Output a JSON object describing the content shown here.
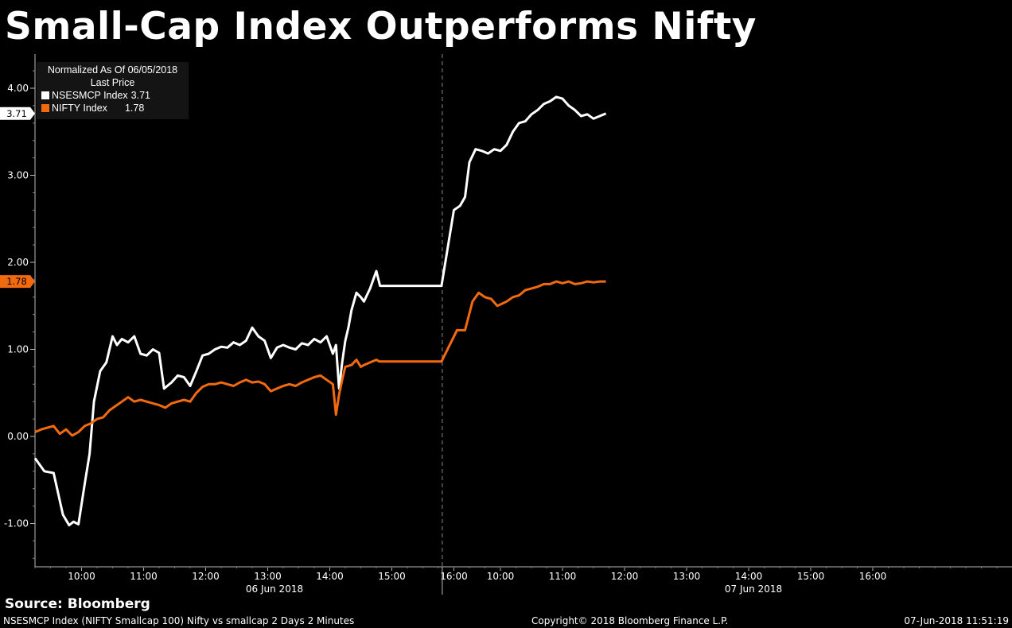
{
  "title": "Small-Cap Index Outperforms Nifty",
  "legend": {
    "header1": "Normalized As Of 06/05/2018",
    "header2": "Last Price",
    "items": [
      {
        "name": "NSESMCP Index",
        "value": "3.71",
        "color": "#ffffff"
      },
      {
        "name": "NIFTY Index",
        "value": "1.78",
        "color": "#f26a10"
      }
    ]
  },
  "footer": {
    "source": "Source: Bloomberg",
    "description": "NSESMCP Index (NIFTY Smallcap 100) Nifty vs smallcap 2 Days 2 Minutes",
    "copyright": "Copyright© 2018 Bloomberg Finance L.P.",
    "timestamp": "07-Jun-2018 11:51:19"
  },
  "chart_data": {
    "type": "line",
    "ylim": [
      -1.5,
      4.4
    ],
    "y_ticks": [
      -1,
      0,
      1,
      2,
      3,
      4
    ],
    "y_tick_labels": [
      "-1.00",
      "0.00",
      "1.00",
      "2.00",
      "3.00",
      "4.00"
    ],
    "x_tick_labels": [
      "10:00",
      "11:00",
      "12:00",
      "13:00",
      "14:00",
      "15:00",
      "16:00",
      "10:00",
      "11:00",
      "12:00",
      "13:00",
      "14:00",
      "15:00",
      "16:00"
    ],
    "days": [
      "06 Jun 2018",
      "07 Jun 2018"
    ],
    "series": [
      {
        "name": "NSESMCP Index",
        "last_label": "3.71",
        "color": "#ffffff",
        "points": [
          [
            0.0,
            -0.25
          ],
          [
            0.15,
            -0.4
          ],
          [
            0.3,
            -0.42
          ],
          [
            0.45,
            -0.9
          ],
          [
            0.55,
            -1.02
          ],
          [
            0.62,
            -0.98
          ],
          [
            0.7,
            -1.01
          ],
          [
            0.8,
            -0.55
          ],
          [
            0.88,
            -0.2
          ],
          [
            0.95,
            0.4
          ],
          [
            1.05,
            0.75
          ],
          [
            1.15,
            0.85
          ],
          [
            1.25,
            1.15
          ],
          [
            1.32,
            1.05
          ],
          [
            1.4,
            1.12
          ],
          [
            1.5,
            1.08
          ],
          [
            1.6,
            1.15
          ],
          [
            1.7,
            0.95
          ],
          [
            1.8,
            0.93
          ],
          [
            1.9,
            1.0
          ],
          [
            2.0,
            0.96
          ],
          [
            2.08,
            0.55
          ],
          [
            2.2,
            0.62
          ],
          [
            2.3,
            0.7
          ],
          [
            2.4,
            0.68
          ],
          [
            2.5,
            0.58
          ],
          [
            2.6,
            0.75
          ],
          [
            2.7,
            0.93
          ],
          [
            2.8,
            0.95
          ],
          [
            2.9,
            1.0
          ],
          [
            3.0,
            1.03
          ],
          [
            3.1,
            1.02
          ],
          [
            3.2,
            1.08
          ],
          [
            3.3,
            1.05
          ],
          [
            3.4,
            1.1
          ],
          [
            3.5,
            1.25
          ],
          [
            3.6,
            1.15
          ],
          [
            3.7,
            1.1
          ],
          [
            3.8,
            0.9
          ],
          [
            3.9,
            1.02
          ],
          [
            4.0,
            1.05
          ],
          [
            4.1,
            1.02
          ],
          [
            4.2,
            1.0
          ],
          [
            4.3,
            1.07
          ],
          [
            4.4,
            1.05
          ],
          [
            4.5,
            1.12
          ],
          [
            4.6,
            1.08
          ],
          [
            4.7,
            1.15
          ],
          [
            4.8,
            0.95
          ],
          [
            4.85,
            1.05
          ],
          [
            4.9,
            0.55
          ],
          [
            4.95,
            0.85
          ],
          [
            5.0,
            1.1
          ],
          [
            5.05,
            1.25
          ],
          [
            5.1,
            1.45
          ],
          [
            5.18,
            1.65
          ],
          [
            5.25,
            1.6
          ],
          [
            5.3,
            1.55
          ],
          [
            5.4,
            1.7
          ],
          [
            5.5,
            1.9
          ],
          [
            5.56,
            1.73
          ],
          [
            5.6,
            1.73
          ],
          [
            5.7,
            1.73
          ],
          [
            5.85,
            1.73
          ],
          [
            6.0,
            1.73
          ],
          [
            6.1,
            1.73
          ],
          [
            6.2,
            1.73
          ],
          [
            6.3,
            1.73
          ],
          [
            6.5,
            1.73
          ],
          [
            6.55,
            1.73
          ],
          [
            6.75,
            2.6
          ],
          [
            6.85,
            2.65
          ],
          [
            6.93,
            2.75
          ],
          [
            7.0,
            3.15
          ],
          [
            7.1,
            3.3
          ],
          [
            7.2,
            3.28
          ],
          [
            7.3,
            3.25
          ],
          [
            7.4,
            3.3
          ],
          [
            7.5,
            3.28
          ],
          [
            7.6,
            3.35
          ],
          [
            7.7,
            3.5
          ],
          [
            7.8,
            3.6
          ],
          [
            7.9,
            3.62
          ],
          [
            8.0,
            3.7
          ],
          [
            8.1,
            3.75
          ],
          [
            8.2,
            3.82
          ],
          [
            8.3,
            3.85
          ],
          [
            8.4,
            3.9
          ],
          [
            8.5,
            3.88
          ],
          [
            8.6,
            3.8
          ],
          [
            8.7,
            3.75
          ],
          [
            8.8,
            3.68
          ],
          [
            8.9,
            3.7
          ],
          [
            9.0,
            3.65
          ],
          [
            9.1,
            3.68
          ],
          [
            9.2,
            3.71
          ]
        ]
      },
      {
        "name": "NIFTY Index",
        "last_label": "1.78",
        "color": "#f26a10",
        "points": [
          [
            0.0,
            0.05
          ],
          [
            0.1,
            0.08
          ],
          [
            0.2,
            0.1
          ],
          [
            0.3,
            0.12
          ],
          [
            0.4,
            0.03
          ],
          [
            0.5,
            0.08
          ],
          [
            0.6,
            0.01
          ],
          [
            0.7,
            0.05
          ],
          [
            0.8,
            0.12
          ],
          [
            0.9,
            0.15
          ],
          [
            1.0,
            0.2
          ],
          [
            1.1,
            0.22
          ],
          [
            1.2,
            0.3
          ],
          [
            1.3,
            0.35
          ],
          [
            1.4,
            0.4
          ],
          [
            1.5,
            0.45
          ],
          [
            1.6,
            0.4
          ],
          [
            1.7,
            0.42
          ],
          [
            1.8,
            0.4
          ],
          [
            1.9,
            0.38
          ],
          [
            2.0,
            0.36
          ],
          [
            2.1,
            0.33
          ],
          [
            2.2,
            0.38
          ],
          [
            2.3,
            0.4
          ],
          [
            2.4,
            0.42
          ],
          [
            2.5,
            0.4
          ],
          [
            2.6,
            0.5
          ],
          [
            2.7,
            0.57
          ],
          [
            2.8,
            0.6
          ],
          [
            2.9,
            0.6
          ],
          [
            3.0,
            0.62
          ],
          [
            3.1,
            0.6
          ],
          [
            3.2,
            0.58
          ],
          [
            3.3,
            0.62
          ],
          [
            3.4,
            0.65
          ],
          [
            3.5,
            0.62
          ],
          [
            3.6,
            0.63
          ],
          [
            3.7,
            0.6
          ],
          [
            3.8,
            0.52
          ],
          [
            3.9,
            0.55
          ],
          [
            4.0,
            0.58
          ],
          [
            4.1,
            0.6
          ],
          [
            4.2,
            0.58
          ],
          [
            4.3,
            0.62
          ],
          [
            4.4,
            0.65
          ],
          [
            4.5,
            0.68
          ],
          [
            4.6,
            0.7
          ],
          [
            4.7,
            0.65
          ],
          [
            4.8,
            0.6
          ],
          [
            4.85,
            0.25
          ],
          [
            4.9,
            0.48
          ],
          [
            4.95,
            0.65
          ],
          [
            5.0,
            0.8
          ],
          [
            5.1,
            0.82
          ],
          [
            5.18,
            0.88
          ],
          [
            5.25,
            0.8
          ],
          [
            5.3,
            0.82
          ],
          [
            5.4,
            0.85
          ],
          [
            5.5,
            0.88
          ],
          [
            5.55,
            0.86
          ],
          [
            5.6,
            0.86
          ],
          [
            5.8,
            0.86
          ],
          [
            6.0,
            0.86
          ],
          [
            6.2,
            0.86
          ],
          [
            6.4,
            0.86
          ],
          [
            6.55,
            0.86
          ],
          [
            6.8,
            1.22
          ],
          [
            6.93,
            1.22
          ],
          [
            7.05,
            1.55
          ],
          [
            7.15,
            1.65
          ],
          [
            7.25,
            1.6
          ],
          [
            7.35,
            1.58
          ],
          [
            7.45,
            1.5
          ],
          [
            7.6,
            1.55
          ],
          [
            7.7,
            1.6
          ],
          [
            7.8,
            1.62
          ],
          [
            7.9,
            1.68
          ],
          [
            8.0,
            1.7
          ],
          [
            8.1,
            1.72
          ],
          [
            8.2,
            1.75
          ],
          [
            8.3,
            1.75
          ],
          [
            8.4,
            1.78
          ],
          [
            8.5,
            1.76
          ],
          [
            8.6,
            1.78
          ],
          [
            8.7,
            1.75
          ],
          [
            8.8,
            1.76
          ],
          [
            8.9,
            1.78
          ],
          [
            9.0,
            1.77
          ],
          [
            9.1,
            1.78
          ],
          [
            9.2,
            1.78
          ]
        ]
      }
    ],
    "x_units": "hours from 09:15 on 06 Jun 2018 (trading time)",
    "day_boundary": 6.55
  }
}
